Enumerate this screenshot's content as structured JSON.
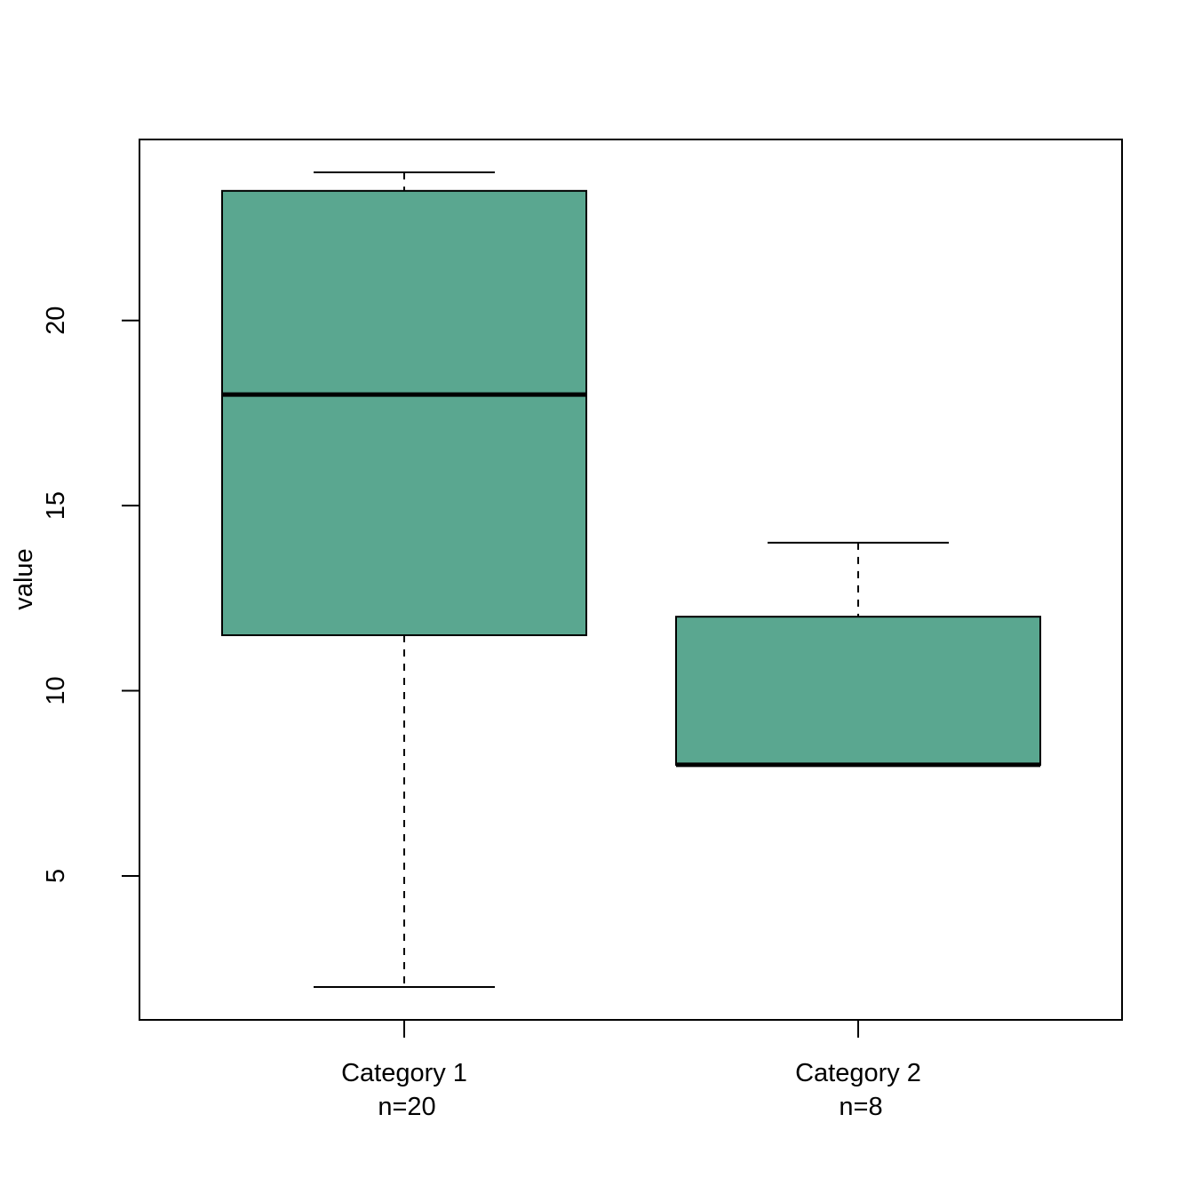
{
  "chart_data": {
    "type": "box",
    "ylabel": "value",
    "xlabel": "",
    "title": "",
    "ylim": [
      1,
      25
    ],
    "yticks": [
      5,
      10,
      15,
      20
    ],
    "box_color": "#5aa790",
    "categories": [
      {
        "label": "Category 1",
        "n_label": "n=20",
        "min": 2,
        "q1": 11.5,
        "median": 18,
        "q3": 23.5,
        "max": 24
      },
      {
        "label": "Category 2",
        "n_label": "n=8",
        "min": 8,
        "q1": 8,
        "median": 8,
        "q3": 12,
        "max": 14
      }
    ]
  }
}
